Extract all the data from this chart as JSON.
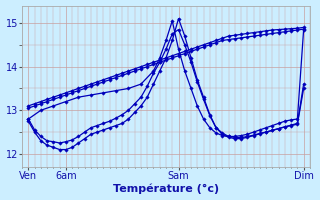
{
  "xlabel": "Température (°c)",
  "ylim": [
    11.7,
    15.4
  ],
  "xlim": [
    0,
    46
  ],
  "background_color": "#cceeff",
  "line_color": "#0000bb",
  "grid_color_v": "#c8a0a0",
  "grid_color_h": "#c8a0a0",
  "xtick_positions": [
    1,
    7,
    25,
    45
  ],
  "xtick_labels": [
    "Ven",
    "6am",
    "Sam",
    "Dim"
  ],
  "ytick_positions": [
    12,
    13,
    14,
    15
  ],
  "ytick_labels": [
    "12",
    "13",
    "14",
    "15"
  ],
  "series": [
    {
      "x": [
        1,
        2,
        3,
        4,
        5,
        6,
        7,
        8,
        9,
        10,
        11,
        12,
        13,
        14,
        15,
        16,
        17,
        18,
        19,
        20,
        21,
        22,
        23,
        24,
        25,
        26,
        27,
        28,
        29,
        30,
        31,
        32,
        33,
        34,
        35,
        36,
        37,
        38,
        39,
        40,
        41,
        42,
        43,
        44,
        45
      ],
      "y": [
        13.1,
        13.15,
        13.2,
        13.25,
        13.3,
        13.35,
        13.4,
        13.45,
        13.5,
        13.55,
        13.6,
        13.65,
        13.7,
        13.75,
        13.8,
        13.85,
        13.9,
        13.95,
        14.0,
        14.05,
        14.1,
        14.15,
        14.2,
        14.25,
        14.3,
        14.35,
        14.4,
        14.45,
        14.5,
        14.55,
        14.6,
        14.65,
        14.7,
        14.72,
        14.74,
        14.76,
        14.78,
        14.8,
        14.82,
        14.84,
        14.85,
        14.86,
        14.87,
        14.88,
        14.9
      ]
    },
    {
      "x": [
        1,
        2,
        3,
        4,
        5,
        6,
        7,
        8,
        9,
        10,
        11,
        12,
        13,
        14,
        15,
        16,
        17,
        18,
        19,
        20,
        21,
        22,
        23,
        24,
        25,
        26,
        27,
        28,
        29,
        30,
        31,
        32,
        33,
        34,
        35,
        36,
        37,
        38,
        39,
        40,
        41,
        42,
        43,
        44,
        45
      ],
      "y": [
        13.05,
        13.1,
        13.15,
        13.2,
        13.25,
        13.3,
        13.35,
        13.4,
        13.45,
        13.5,
        13.55,
        13.6,
        13.65,
        13.7,
        13.75,
        13.8,
        13.85,
        13.9,
        13.95,
        14.0,
        14.05,
        14.1,
        14.15,
        14.2,
        14.25,
        14.3,
        14.35,
        14.4,
        14.45,
        14.5,
        14.55,
        14.6,
        14.62,
        14.64,
        14.66,
        14.68,
        14.7,
        14.72,
        14.74,
        14.76,
        14.78,
        14.8,
        14.82,
        14.84,
        14.86
      ]
    },
    {
      "x": [
        1,
        2,
        3,
        4,
        5,
        6,
        7,
        8,
        9,
        10,
        11,
        12,
        13,
        14,
        15,
        16,
        17,
        18,
        19,
        20,
        21,
        22,
        23,
        24,
        25,
        26,
        27,
        28,
        29,
        30,
        31,
        32,
        33,
        34,
        35,
        36,
        37,
        38,
        39,
        40,
        41,
        42,
        43,
        44,
        45
      ],
      "y": [
        12.75,
        12.5,
        12.3,
        12.2,
        12.15,
        12.1,
        12.1,
        12.15,
        12.25,
        12.35,
        12.45,
        12.5,
        12.55,
        12.6,
        12.65,
        12.7,
        12.8,
        12.95,
        13.1,
        13.3,
        13.6,
        13.9,
        14.2,
        14.6,
        15.1,
        14.7,
        14.2,
        13.7,
        13.3,
        12.9,
        12.6,
        12.45,
        12.38,
        12.35,
        12.35,
        12.38,
        12.42,
        12.46,
        12.5,
        12.54,
        12.58,
        12.62,
        12.65,
        12.68,
        13.5
      ]
    },
    {
      "x": [
        1,
        2,
        3,
        4,
        5,
        6,
        7,
        8,
        9,
        10,
        11,
        12,
        13,
        14,
        15,
        16,
        17,
        18,
        19,
        20,
        21,
        22,
        23,
        24,
        25,
        26,
        27,
        28,
        29,
        30,
        31,
        32,
        33,
        34,
        35,
        36,
        37,
        38,
        39,
        40,
        41,
        42,
        43,
        44,
        45
      ],
      "y": [
        12.8,
        12.55,
        12.4,
        12.3,
        12.28,
        12.25,
        12.28,
        12.32,
        12.4,
        12.5,
        12.6,
        12.65,
        12.7,
        12.75,
        12.82,
        12.9,
        13.0,
        13.15,
        13.3,
        13.55,
        13.85,
        14.1,
        14.4,
        14.75,
        14.85,
        14.5,
        14.1,
        13.65,
        13.25,
        12.88,
        12.6,
        12.48,
        12.4,
        12.38,
        12.37,
        12.4,
        12.43,
        12.47,
        12.5,
        12.54,
        12.58,
        12.62,
        12.66,
        12.7,
        13.6
      ]
    },
    {
      "x": [
        1,
        3,
        5,
        7,
        9,
        11,
        13,
        15,
        17,
        19,
        21,
        22,
        23,
        24,
        25,
        26,
        27,
        28,
        29,
        30,
        31,
        32,
        33,
        34,
        35,
        36,
        37,
        38,
        39,
        40,
        41,
        42,
        43,
        44,
        45
      ],
      "y": [
        12.8,
        13.0,
        13.1,
        13.2,
        13.3,
        13.35,
        13.4,
        13.45,
        13.5,
        13.6,
        13.9,
        14.2,
        14.6,
        15.05,
        14.4,
        13.9,
        13.5,
        13.1,
        12.8,
        12.6,
        12.48,
        12.42,
        12.4,
        12.4,
        12.42,
        12.45,
        12.5,
        12.55,
        12.6,
        12.65,
        12.7,
        12.75,
        12.78,
        12.8,
        14.85
      ]
    }
  ]
}
